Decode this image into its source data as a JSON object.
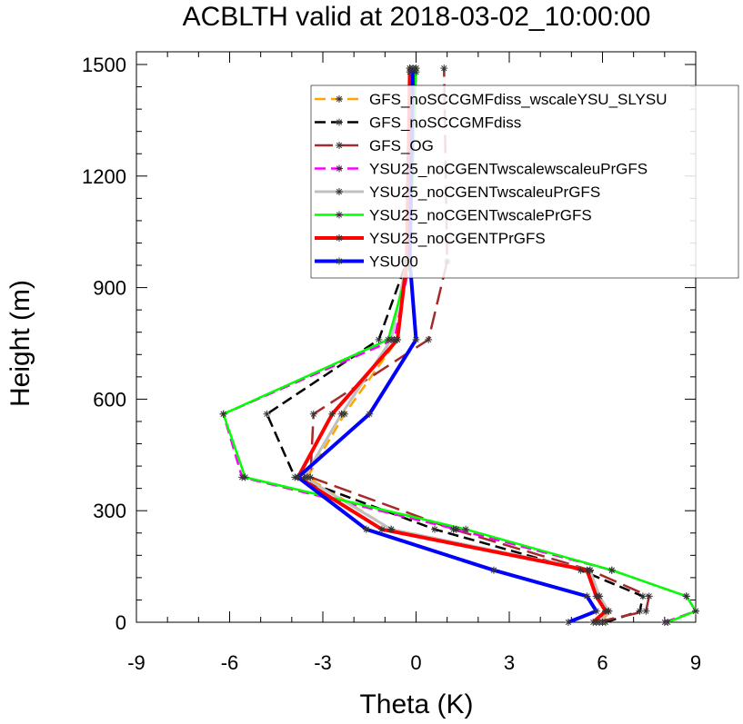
{
  "chart_data": {
    "type": "line",
    "title": "ACBLTH valid at 2018-03-02_10:00:00",
    "xlabel": "Theta (K)",
    "ylabel": "Height (m)",
    "xlim": [
      -9,
      9
    ],
    "ylim": [
      0,
      1500
    ],
    "xticks": [
      -9,
      -6,
      -3,
      0,
      3,
      6,
      9
    ],
    "yticks": [
      0,
      300,
      600,
      900,
      1200,
      1500
    ],
    "grid": false,
    "legend_position": "top-right",
    "marker": "asterisk",
    "series": [
      {
        "name": "GFS_noSCCGMFdiss_wscaleYSU_SLYSU",
        "color": "#ffa500",
        "dash": "dash",
        "width": 2.5,
        "points": [
          [
            6.0,
            0
          ],
          [
            6.2,
            30
          ],
          [
            5.9,
            70
          ],
          [
            5.6,
            140
          ],
          [
            -0.8,
            250
          ],
          [
            -3.5,
            390
          ],
          [
            -2.3,
            560
          ],
          [
            -0.6,
            760
          ],
          [
            -0.3,
            970
          ],
          [
            -0.2,
            1480
          ]
        ]
      },
      {
        "name": "GFS_noSCCGMFdiss",
        "color": "#000000",
        "dash": "dash",
        "width": 2.5,
        "points": [
          [
            6.1,
            0
          ],
          [
            7.2,
            30
          ],
          [
            7.3,
            70
          ],
          [
            5.3,
            140
          ],
          [
            0.6,
            250
          ],
          [
            -3.9,
            390
          ],
          [
            -4.8,
            560
          ],
          [
            -1.2,
            760
          ],
          [
            -0.3,
            970
          ],
          [
            0.0,
            1480
          ]
        ]
      },
      {
        "name": "GFS_OG",
        "color": "#a52a2a",
        "dash": "longdash",
        "width": 2.5,
        "points": [
          [
            5.8,
            0
          ],
          [
            7.4,
            30
          ],
          [
            7.5,
            70
          ],
          [
            5.6,
            140
          ],
          [
            1.2,
            250
          ],
          [
            -3.4,
            390
          ],
          [
            -3.3,
            560
          ],
          [
            0.4,
            760
          ],
          [
            1.0,
            970
          ],
          [
            0.9,
            1490
          ]
        ]
      },
      {
        "name": "YSU25_noCGENTwscalewscaleuPrGFS",
        "color": "#ff00ff",
        "dash": "dash",
        "width": 2.5,
        "points": [
          [
            8.0,
            0
          ],
          [
            9.0,
            30
          ],
          [
            8.7,
            70
          ],
          [
            6.3,
            140
          ],
          [
            1.3,
            250
          ],
          [
            -5.6,
            390
          ],
          [
            -6.2,
            560
          ],
          [
            -0.7,
            760
          ],
          [
            -0.2,
            970
          ],
          [
            0.0,
            1490
          ]
        ]
      },
      {
        "name": "YSU25_noCGENTwscaleuPrGFS",
        "color": "#c0c0c0",
        "dash": "solid",
        "width": 3,
        "points": [
          [
            5.9,
            0
          ],
          [
            6.2,
            30
          ],
          [
            5.9,
            70
          ],
          [
            5.6,
            140
          ],
          [
            -0.8,
            250
          ],
          [
            -3.6,
            390
          ],
          [
            -2.4,
            560
          ],
          [
            -0.8,
            760
          ],
          [
            -0.3,
            970
          ],
          [
            -0.2,
            1490
          ]
        ]
      },
      {
        "name": "YSU25_noCGENTwscalePrGFS",
        "color": "#00ff00",
        "dash": "solid",
        "width": 2.5,
        "points": [
          [
            8.1,
            0
          ],
          [
            9.0,
            30
          ],
          [
            8.7,
            70
          ],
          [
            6.3,
            140
          ],
          [
            1.6,
            250
          ],
          [
            -5.5,
            390
          ],
          [
            -6.2,
            560
          ],
          [
            -0.9,
            760
          ],
          [
            -0.2,
            970
          ],
          [
            0.0,
            1490
          ]
        ]
      },
      {
        "name": "YSU25_noCGENTPrGFS",
        "color": "#ff0000",
        "dash": "solid",
        "width": 4,
        "points": [
          [
            5.7,
            0
          ],
          [
            6.1,
            30
          ],
          [
            5.8,
            70
          ],
          [
            5.5,
            140
          ],
          [
            -1.1,
            250
          ],
          [
            -3.8,
            390
          ],
          [
            -2.7,
            560
          ],
          [
            -0.6,
            760
          ],
          [
            -0.3,
            970
          ],
          [
            -0.2,
            1490
          ]
        ]
      },
      {
        "name": "YSU00",
        "color": "#0000ff",
        "dash": "solid",
        "width": 4,
        "points": [
          [
            4.9,
            0
          ],
          [
            5.8,
            30
          ],
          [
            5.5,
            70
          ],
          [
            2.5,
            140
          ],
          [
            -1.6,
            250
          ],
          [
            -3.8,
            390
          ],
          [
            -1.5,
            560
          ],
          [
            0.0,
            760
          ],
          [
            -0.2,
            970
          ],
          [
            -0.1,
            1490
          ]
        ]
      }
    ]
  }
}
